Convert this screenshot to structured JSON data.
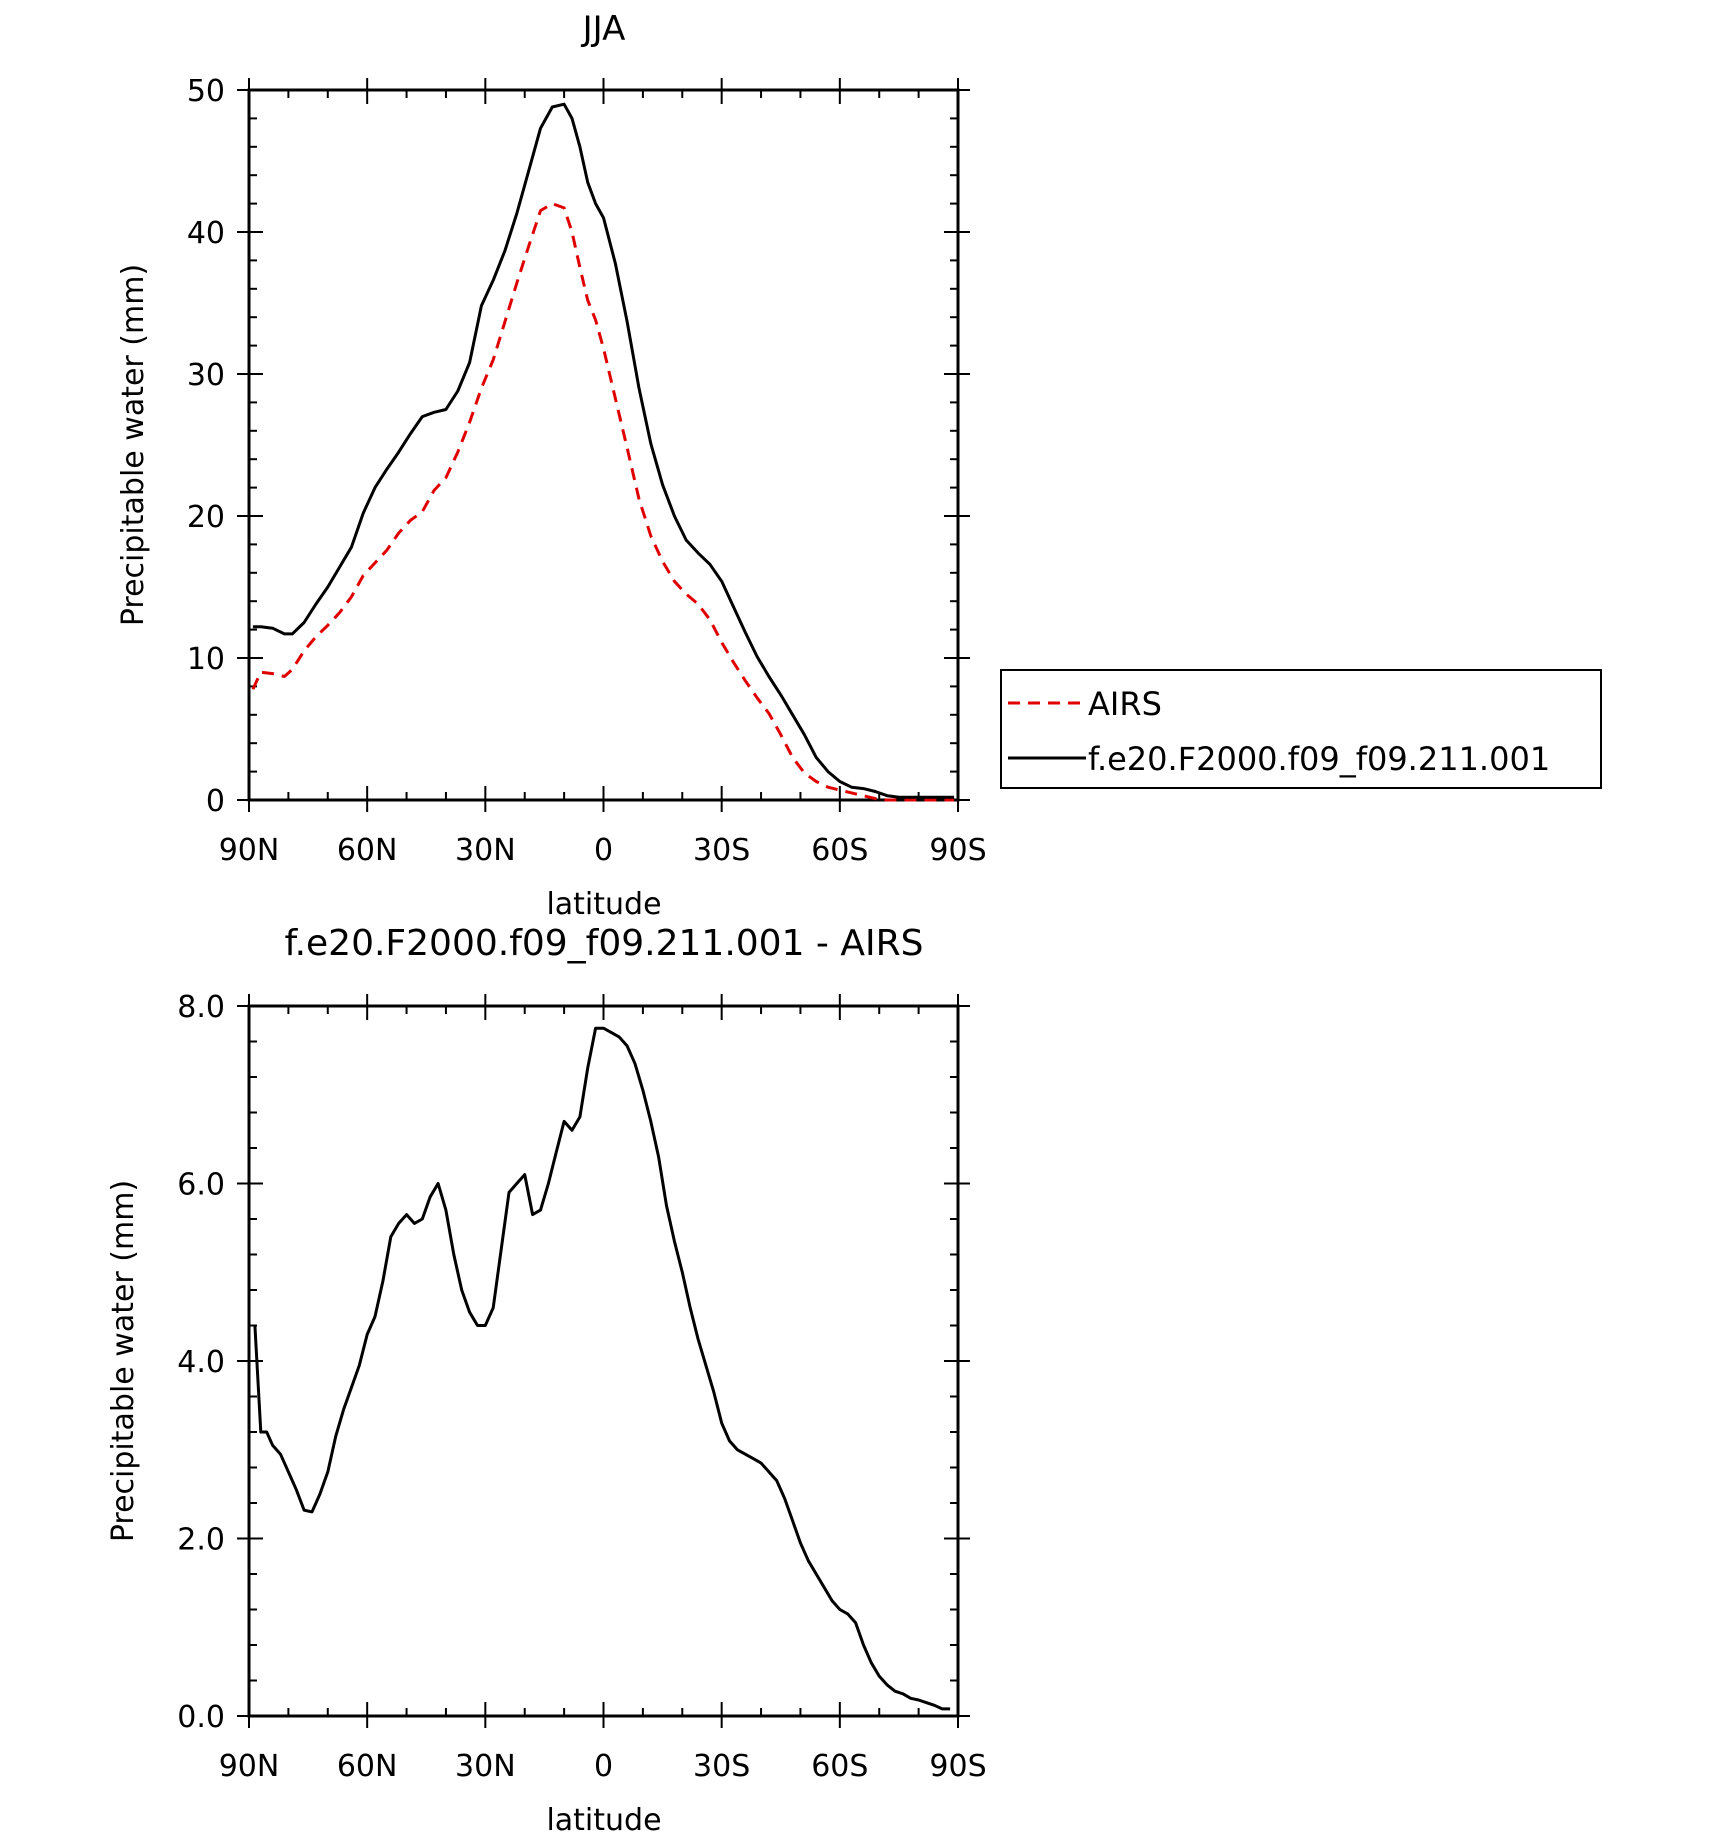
{
  "chart_data": [
    {
      "type": "line",
      "title": "JJA",
      "xlabel": "latitude",
      "ylabel": "Precipitable water (mm)",
      "xlim": [
        90,
        -90
      ],
      "ylim": [
        0,
        50
      ],
      "x_ticks": [
        90,
        60,
        30,
        0,
        -30,
        -60,
        -90
      ],
      "x_tick_labels": [
        "90N",
        "60N",
        "30N",
        "0",
        "30S",
        "60S",
        "90S"
      ],
      "y_ticks": [
        0,
        10,
        20,
        30,
        40,
        50
      ],
      "y_tick_labels": [
        "0",
        "10",
        "20",
        "30",
        "40",
        "50"
      ],
      "legend": "right",
      "series": [
        {
          "name": "AIRS",
          "color": "#e00000",
          "style": "dashed",
          "x": [
            89,
            87,
            84,
            81,
            79,
            76,
            73,
            70,
            67,
            64,
            61,
            58,
            55,
            52,
            49,
            46,
            43,
            40,
            37,
            34,
            31,
            28,
            25,
            22,
            19,
            16,
            13,
            10,
            8,
            6,
            4,
            2,
            0,
            -3,
            -6,
            -9,
            -12,
            -15,
            -18,
            -21,
            -24,
            -27,
            -30,
            -33,
            -36,
            -39,
            -42,
            -45,
            -48,
            -51,
            -54,
            -57,
            -60,
            -63,
            -66,
            -69,
            -72,
            -75,
            -78,
            -81,
            -84,
            -87,
            -89
          ],
          "y": [
            7.8,
            9.0,
            8.9,
            8.7,
            9.2,
            10.5,
            11.5,
            12.3,
            13.2,
            14.3,
            15.8,
            16.7,
            17.6,
            18.8,
            19.7,
            20.3,
            21.8,
            22.7,
            24.5,
            26.6,
            29.0,
            31.0,
            33.7,
            36.4,
            39.0,
            41.5,
            42.0,
            41.7,
            40.0,
            37.5,
            35.2,
            33.8,
            31.8,
            28.3,
            24.8,
            21.2,
            18.6,
            16.8,
            15.4,
            14.5,
            13.8,
            12.7,
            11.1,
            9.7,
            8.4,
            7.2,
            6.1,
            4.6,
            3.0,
            1.9,
            1.3,
            0.9,
            0.7,
            0.5,
            0.3,
            0.1,
            0.0,
            0.0,
            0.0,
            0.0,
            0.0,
            0.0,
            0.0
          ]
        },
        {
          "name": "f.e20.F2000.f09_f09.211.001",
          "color": "#000000",
          "style": "solid",
          "x": [
            89,
            87,
            84,
            81,
            79,
            76,
            73,
            70,
            67,
            64,
            61,
            58,
            55,
            52,
            49,
            46,
            43,
            40,
            37,
            34,
            31,
            28,
            25,
            22,
            19,
            16,
            13,
            10,
            8,
            6,
            4,
            2,
            0,
            -3,
            -6,
            -9,
            -12,
            -15,
            -18,
            -21,
            -24,
            -27,
            -30,
            -33,
            -36,
            -39,
            -42,
            -45,
            -48,
            -51,
            -54,
            -57,
            -60,
            -63,
            -66,
            -69,
            -72,
            -75,
            -78,
            -81,
            -84,
            -87,
            -89
          ],
          "y": [
            12.2,
            12.2,
            12.1,
            11.7,
            11.7,
            12.5,
            13.8,
            15.0,
            16.4,
            17.8,
            20.2,
            22.0,
            23.3,
            24.5,
            25.8,
            27.0,
            27.3,
            27.5,
            28.8,
            30.8,
            34.8,
            36.6,
            38.7,
            41.3,
            44.3,
            47.3,
            48.8,
            49.0,
            48.0,
            46.0,
            43.5,
            42.0,
            41.0,
            37.8,
            33.7,
            29.0,
            25.1,
            22.2,
            20.0,
            18.3,
            17.4,
            16.6,
            15.4,
            13.6,
            11.8,
            10.1,
            8.7,
            7.4,
            6.0,
            4.6,
            3.0,
            2.0,
            1.3,
            0.9,
            0.8,
            0.6,
            0.3,
            0.2,
            0.2,
            0.2,
            0.2,
            0.2,
            0.2
          ]
        }
      ]
    },
    {
      "type": "line",
      "title": "f.e20.F2000.f09_f09.211.001 - AIRS",
      "xlabel": "latitude",
      "ylabel": "Precipitable water (mm)",
      "xlim": [
        90,
        -90
      ],
      "ylim": [
        0,
        8
      ],
      "x_ticks": [
        90,
        60,
        30,
        0,
        -30,
        -60,
        -90
      ],
      "x_tick_labels": [
        "90N",
        "60N",
        "30N",
        "0",
        "30S",
        "60S",
        "90S"
      ],
      "y_ticks": [
        0,
        2,
        4,
        6,
        8
      ],
      "y_tick_labels": [
        "0.0",
        "2.0",
        "4.0",
        "6.0",
        "8.0"
      ],
      "series": [
        {
          "color": "#000000",
          "style": "solid",
          "x": [
            88.5,
            87,
            85.5,
            84,
            82,
            80,
            78,
            76,
            74,
            72,
            70,
            68,
            66,
            64,
            62,
            60,
            58,
            56,
            54,
            52,
            50,
            48,
            46,
            44,
            42,
            40,
            38,
            36,
            34,
            32,
            30,
            28,
            26,
            24,
            22,
            20,
            18,
            16,
            14,
            12,
            10,
            8,
            6,
            4,
            2,
            0,
            -2,
            -4,
            -6,
            -8,
            -10,
            -12,
            -14,
            -16,
            -18,
            -20,
            -22,
            -24,
            -26,
            -28,
            -30,
            -32,
            -34,
            -36,
            -38,
            -40,
            -42,
            -44,
            -46,
            -48,
            -50,
            -52,
            -54,
            -56,
            -58,
            -60,
            -62,
            -64,
            -66,
            -68,
            -70,
            -72,
            -74,
            -76,
            -78,
            -80,
            -82,
            -84,
            -86,
            -88
          ],
          "y": [
            4.4,
            3.2,
            3.2,
            3.05,
            2.95,
            2.75,
            2.55,
            2.32,
            2.3,
            2.5,
            2.75,
            3.15,
            3.45,
            3.7,
            3.95,
            4.3,
            4.5,
            4.9,
            5.4,
            5.55,
            5.65,
            5.55,
            5.6,
            5.85,
            6.0,
            5.7,
            5.2,
            4.8,
            4.55,
            4.4,
            4.4,
            4.6,
            5.25,
            5.9,
            6.0,
            6.1,
            5.65,
            5.7,
            6.0,
            6.35,
            6.7,
            6.6,
            6.75,
            7.3,
            7.75,
            7.75,
            7.7,
            7.65,
            7.55,
            7.35,
            7.05,
            6.7,
            6.3,
            5.75,
            5.35,
            5.0,
            4.6,
            4.25,
            3.95,
            3.65,
            3.3,
            3.1,
            3.0,
            2.95,
            2.9,
            2.85,
            2.75,
            2.65,
            2.45,
            2.2,
            1.95,
            1.75,
            1.6,
            1.45,
            1.3,
            1.2,
            1.15,
            1.05,
            0.8,
            0.6,
            0.45,
            0.35,
            0.28,
            0.25,
            0.2,
            0.18,
            0.15,
            0.12,
            0.08,
            0.08
          ]
        }
      ]
    }
  ]
}
